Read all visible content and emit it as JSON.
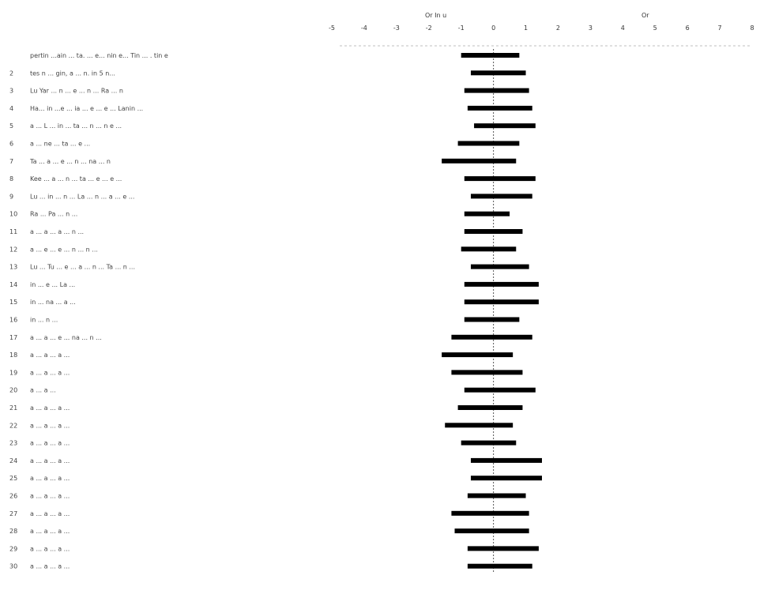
{
  "chart_data": {
    "type": "bar",
    "orientation": "horizontal-range",
    "title": "",
    "header_left": "Or In u",
    "header_right": "Or",
    "xlim": [
      -5,
      8
    ],
    "x_ticks": [
      "-5",
      "-4",
      "-3",
      "-2",
      "-1",
      "0",
      "1",
      "2",
      "3",
      "4",
      "5",
      "6",
      "7",
      "8"
    ],
    "reference_value": 0,
    "rows": [
      {
        "num": "",
        "label": "pertin ...ain ... ta. ... e... nin e... Tin ... . tin e",
        "low": -1.0,
        "high": 0.8
      },
      {
        "num": "2",
        "label": "tes n ... gin, a ... n. in 5 n...",
        "low": -0.7,
        "high": 1.0
      },
      {
        "num": "3",
        "label": "Lu Yar ... n ... e ... n ... Ra ... n",
        "low": -0.9,
        "high": 1.1
      },
      {
        "num": "4",
        "label": "Ha... in ...e ... ia ... e ... e ... Lanin ...",
        "low": -0.8,
        "high": 1.2
      },
      {
        "num": "5",
        "label": "a ... L ... in ... ta ... n ... n e ... ",
        "low": -0.6,
        "high": 1.3
      },
      {
        "num": "6",
        "label": "a ... ne ... ta ... e ...",
        "low": -1.1,
        "high": 0.8
      },
      {
        "num": "7",
        "label": "Ta ... a ... e ... n ... na ... n",
        "low": -1.6,
        "high": 0.7
      },
      {
        "num": "8",
        "label": "Kee ... a ... n ... ta ... e ... e ...",
        "low": -0.9,
        "high": 1.3
      },
      {
        "num": "9",
        "label": "Lu ... in ... n ... La ... n ... a ... e ...",
        "low": -0.7,
        "high": 1.2
      },
      {
        "num": "10",
        "label": "Ra ... Pa ... n ...",
        "low": -0.9,
        "high": 0.5
      },
      {
        "num": "11",
        "label": "a ... a ... a ... n ...",
        "low": -0.9,
        "high": 0.9
      },
      {
        "num": "12",
        "label": "a ... e ... e ... n ... n ...",
        "low": -1.0,
        "high": 0.7
      },
      {
        "num": "13",
        "label": "Lu ... Tu ... e ... a ... n ... Ta ... n ...",
        "low": -0.7,
        "high": 1.1
      },
      {
        "num": "14",
        "label": "in ... e ... La ...",
        "low": -0.9,
        "high": 1.4
      },
      {
        "num": "15",
        "label": "in ... na ... a ...",
        "low": -0.9,
        "high": 1.4
      },
      {
        "num": "16",
        "label": "in ... n ...",
        "low": -0.9,
        "high": 0.8
      },
      {
        "num": "17",
        "label": "a ... a ... e ... na ... n ...",
        "low": -1.3,
        "high": 1.2
      },
      {
        "num": "18",
        "label": "a ... a ... a ...",
        "low": -1.6,
        "high": 0.6
      },
      {
        "num": "19",
        "label": "a ... a ... a ...",
        "low": -1.3,
        "high": 0.9
      },
      {
        "num": "20",
        "label": "a ... a ...",
        "low": -0.9,
        "high": 1.3
      },
      {
        "num": "21",
        "label": "a ... a ... a ...",
        "low": -1.1,
        "high": 0.9
      },
      {
        "num": "22",
        "label": "a ... a ... a ...",
        "low": -1.5,
        "high": 0.6
      },
      {
        "num": "23",
        "label": "a ... a ... a ...",
        "low": -1.0,
        "high": 0.7
      },
      {
        "num": "24",
        "label": "a ... a ... a ...",
        "low": -0.7,
        "high": 1.5
      },
      {
        "num": "25",
        "label": "a ... a ... a ...",
        "low": -0.7,
        "high": 1.5
      },
      {
        "num": "26",
        "label": "a ... a ... a ...",
        "low": -0.8,
        "high": 1.0
      },
      {
        "num": "27",
        "label": "a ... a ... a ...",
        "low": -1.3,
        "high": 1.1
      },
      {
        "num": "28",
        "label": "a ... a ... a ...",
        "low": -1.2,
        "high": 1.1
      },
      {
        "num": "29",
        "label": "a ... a ... a ...",
        "low": -0.8,
        "high": 1.4
      },
      {
        "num": "30",
        "label": "a ... a ... a ...",
        "low": -0.8,
        "high": 1.2
      }
    ]
  }
}
